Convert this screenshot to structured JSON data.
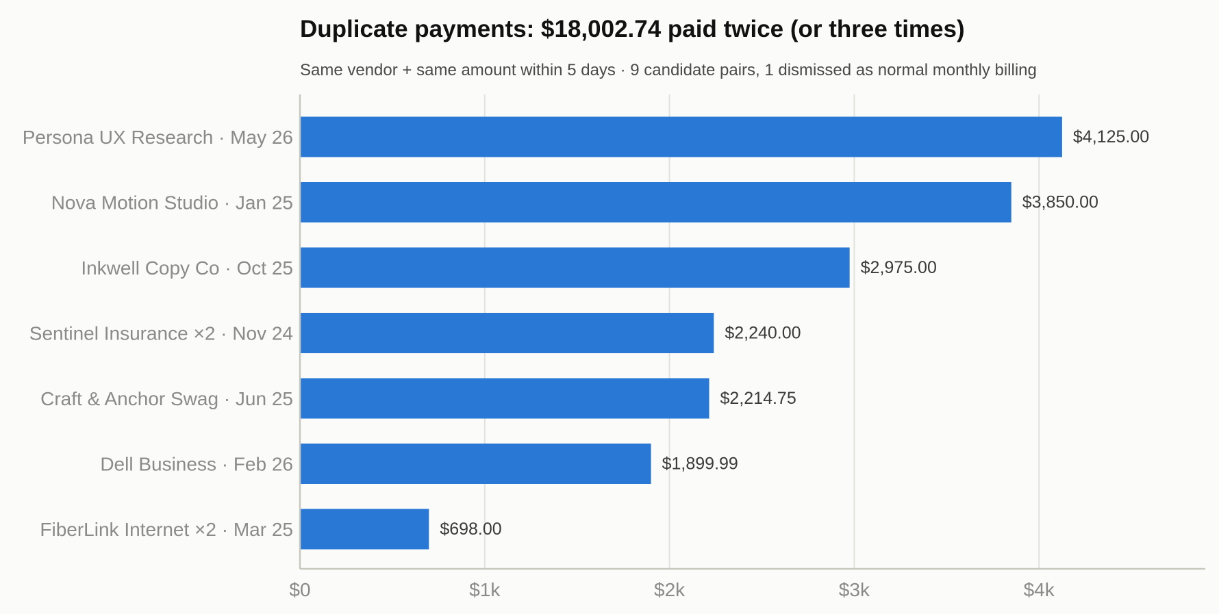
{
  "chart_data": {
    "type": "bar",
    "orientation": "horizontal",
    "title": "Duplicate payments: $18,002.74 paid twice (or three times)",
    "subtitle": "Same vendor + same amount within 5 days · 9 candidate pairs, 1 dismissed as normal monthly billing",
    "categories": [
      "Persona UX Research · May 26",
      "Nova Motion Studio · Jan 25",
      "Inkwell Copy Co · Oct 25",
      "Sentinel Insurance ×2 · Nov 24",
      "Craft & Anchor Swag · Jun 25",
      "Dell Business · Feb 26",
      "FiberLink Internet ×2 · Mar 25"
    ],
    "values": [
      4125.0,
      3850.0,
      2975.0,
      2240.0,
      2214.75,
      1899.99,
      698.0
    ],
    "value_labels": [
      "$4,125.00",
      "$3,850.00",
      "$2,975.00",
      "$2,240.00",
      "$2,214.75",
      "$1,899.99",
      "$698.00"
    ],
    "xlim": [
      0,
      4900
    ],
    "x_ticks": [
      0,
      1000,
      2000,
      3000,
      4000
    ],
    "x_tick_labels": [
      "$0",
      "$1k",
      "$2k",
      "$3k",
      "$4k"
    ],
    "xlabel": "",
    "ylabel": "",
    "grid": "vertical",
    "legend": "none",
    "colors": {
      "bar": "#2a78d6",
      "background": "#fbfbfa"
    }
  }
}
